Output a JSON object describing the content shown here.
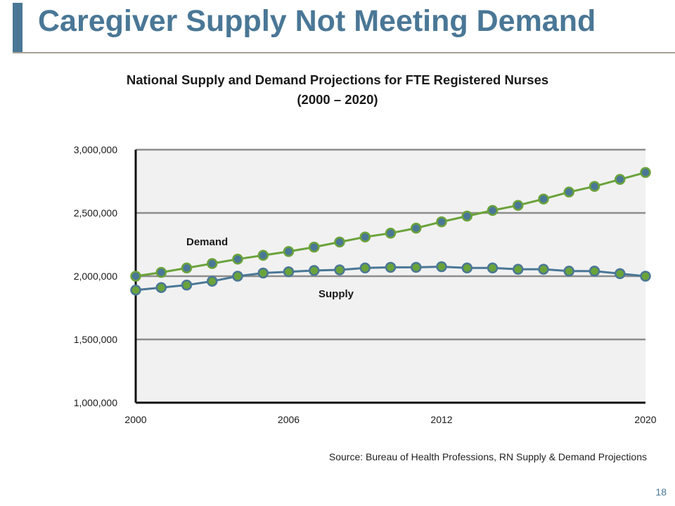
{
  "slide": {
    "title": "Caregiver Supply Not Meeting Demand",
    "source": "Source: Bureau of Health Professions, RN Supply & Demand Projections",
    "page_number": "18",
    "accent_color": "#4a7796"
  },
  "chart_data": {
    "type": "line",
    "title": "National Supply and Demand Projections for FTE Registered Nurses",
    "subtitle": "(2000 – 2020)",
    "xlabel": "",
    "ylabel": "",
    "x": [
      2000,
      2001,
      2002,
      2003,
      2004,
      2005,
      2006,
      2007,
      2008,
      2009,
      2010,
      2011,
      2012,
      2013,
      2014,
      2015,
      2016,
      2017,
      2018,
      2019,
      2020
    ],
    "xticks": [
      "2000",
      "2006",
      "2012",
      "2020"
    ],
    "xtick_values": [
      2000,
      2006,
      2012,
      2020
    ],
    "yticks": [
      "1,000,000",
      "1,500,000",
      "2,000,000",
      "2,500,000",
      "3,000,000"
    ],
    "ytick_values": [
      1000000,
      1500000,
      2000000,
      2500000,
      3000000
    ],
    "ylim": [
      1000000,
      3000000
    ],
    "grid": true,
    "series": [
      {
        "name": "Demand",
        "color": "#6aa33a",
        "marker_color": "#4a7796",
        "values": [
          2000000,
          2030000,
          2065000,
          2100000,
          2135000,
          2165000,
          2195000,
          2230000,
          2270000,
          2310000,
          2340000,
          2380000,
          2430000,
          2475000,
          2520000,
          2560000,
          2610000,
          2665000,
          2710000,
          2765000,
          2820000
        ]
      },
      {
        "name": "Supply",
        "color": "#4a7796",
        "marker_color": "#6aa33a",
        "values": [
          1890000,
          1910000,
          1930000,
          1960000,
          2000000,
          2025000,
          2035000,
          2045000,
          2050000,
          2065000,
          2070000,
          2070000,
          2075000,
          2065000,
          2065000,
          2055000,
          2055000,
          2040000,
          2040000,
          2020000,
          2000000
        ]
      }
    ]
  }
}
